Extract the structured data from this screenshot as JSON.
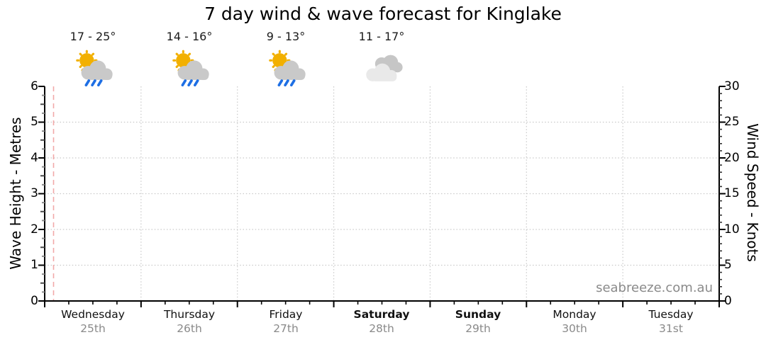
{
  "watermark": "seabreeze.com.au",
  "colors": {
    "sun": "#F2B000",
    "cloud": "#C9C9C9",
    "cloud_light": "#E9E9E9",
    "rain": "#1E6FE4",
    "now_line": "#F2A9A9",
    "gridline": "#C9C9C9",
    "axis": "#000000",
    "date_text": "#8A8A8A",
    "watermark_text": "#8A8A8A"
  },
  "chart_data": {
    "type": "line",
    "title": "7 day wind & wave forecast for Kinglake",
    "y_left_axis": {
      "label": "Wave Height - Metres",
      "min": 0,
      "max": 6,
      "tick_labels": [
        "0",
        "1",
        "2",
        "3",
        "4",
        "5",
        "6"
      ],
      "minor_tick_interval": 0.25
    },
    "y_right_axis": {
      "label": "Wind Speed - Knots",
      "min": 0,
      "max": 30,
      "tick_labels": [
        "0",
        "5",
        "10",
        "15",
        "20",
        "25",
        "30"
      ],
      "minor_tick_interval": 1
    },
    "x_axis": {
      "minor_tick_interval_hours": 6,
      "vertical_gridlines": "day-boundaries",
      "now_marker": "dashed pink line near start of Wednesday"
    },
    "grid": "dotted horizontal lines at integer wave heights, dotted vertical lines at day boundaries",
    "legend": "none",
    "series": [],
    "days": [
      {
        "label": "Wednesday",
        "date": "25th",
        "bold": false,
        "temp_range": "17 - 25°",
        "icon": "sun-cloud-rain-icon"
      },
      {
        "label": "Thursday",
        "date": "26th",
        "bold": false,
        "temp_range": "14 - 16°",
        "icon": "sun-cloud-rain-icon"
      },
      {
        "label": "Friday",
        "date": "27th",
        "bold": false,
        "temp_range": "9 - 13°",
        "icon": "sun-cloud-rain-icon"
      },
      {
        "label": "Saturday",
        "date": "28th",
        "bold": true,
        "temp_range": "11 - 17°",
        "icon": "clouds-icon"
      },
      {
        "label": "Sunday",
        "date": "29th",
        "bold": true
      },
      {
        "label": "Monday",
        "date": "30th",
        "bold": false
      },
      {
        "label": "Tuesday",
        "date": "31st",
        "bold": false
      }
    ]
  }
}
